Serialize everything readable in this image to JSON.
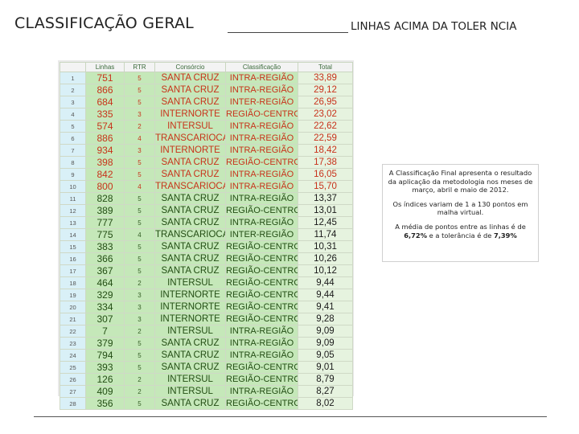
{
  "header": {
    "title_left": "CLASSIFICAÇÃO GERAL",
    "title_right": "LINHAS ACIMA DA TOLER NCIA"
  },
  "table": {
    "columns": [
      "",
      "Linhas",
      "RTR",
      "Consórcio",
      "Classificação",
      "Total"
    ],
    "rows": [
      {
        "n": "1",
        "linha": "751",
        "rtr": "5",
        "consorcio": "SANTA CRUZ",
        "classificacao": "INTRA-REGIÃO",
        "total": "33,89",
        "hi": true
      },
      {
        "n": "2",
        "linha": "866",
        "rtr": "5",
        "consorcio": "SANTA CRUZ",
        "classificacao": "INTRA-REGIÃO",
        "total": "29,12",
        "hi": true
      },
      {
        "n": "3",
        "linha": "684",
        "rtr": "5",
        "consorcio": "SANTA CRUZ",
        "classificacao": "INTER-REGIÃO",
        "total": "26,95",
        "hi": true
      },
      {
        "n": "4",
        "linha": "335",
        "rtr": "3",
        "consorcio": "INTERNORTE",
        "classificacao": "REGIÃO-CENTRO",
        "total": "23,02",
        "hi": true
      },
      {
        "n": "5",
        "linha": "574",
        "rtr": "2",
        "consorcio": "INTERSUL",
        "classificacao": "INTRA-REGIÃO",
        "total": "22,62",
        "hi": true
      },
      {
        "n": "6",
        "linha": "886",
        "rtr": "4",
        "consorcio": "TRANSCARIOCA",
        "classificacao": "INTRA-REGIÃO",
        "total": "22,59",
        "hi": true
      },
      {
        "n": "7",
        "linha": "934",
        "rtr": "3",
        "consorcio": "INTERNORTE",
        "classificacao": "INTRA-REGIÃO",
        "total": "18,42",
        "hi": true
      },
      {
        "n": "8",
        "linha": "398",
        "rtr": "5",
        "consorcio": "SANTA CRUZ",
        "classificacao": "REGIÃO-CENTRO",
        "total": "17,38",
        "hi": true
      },
      {
        "n": "9",
        "linha": "842",
        "rtr": "5",
        "consorcio": "SANTA CRUZ",
        "classificacao": "INTRA-REGIÃO",
        "total": "16,05",
        "hi": true
      },
      {
        "n": "10",
        "linha": "800",
        "rtr": "4",
        "consorcio": "TRANSCARIOCA",
        "classificacao": "INTRA-REGIÃO",
        "total": "15,70",
        "hi": true
      },
      {
        "n": "11",
        "linha": "828",
        "rtr": "5",
        "consorcio": "SANTA CRUZ",
        "classificacao": "INTRA-REGIÃO",
        "total": "13,37",
        "hi": false
      },
      {
        "n": "12",
        "linha": "389",
        "rtr": "5",
        "consorcio": "SANTA CRUZ",
        "classificacao": "REGIÃO-CENTRO",
        "total": "13,01",
        "hi": false
      },
      {
        "n": "13",
        "linha": "777",
        "rtr": "5",
        "consorcio": "SANTA CRUZ",
        "classificacao": "INTRA-REGIÃO",
        "total": "12,45",
        "hi": false
      },
      {
        "n": "14",
        "linha": "775",
        "rtr": "4",
        "consorcio": "TRANSCARIOCA",
        "classificacao": "INTER-REGIÃO",
        "total": "11,74",
        "hi": false
      },
      {
        "n": "15",
        "linha": "383",
        "rtr": "5",
        "consorcio": "SANTA CRUZ",
        "classificacao": "REGIÃO-CENTRO",
        "total": "10,31",
        "hi": false
      },
      {
        "n": "16",
        "linha": "366",
        "rtr": "5",
        "consorcio": "SANTA CRUZ",
        "classificacao": "REGIÃO-CENTRO",
        "total": "10,26",
        "hi": false
      },
      {
        "n": "17",
        "linha": "367",
        "rtr": "5",
        "consorcio": "SANTA CRUZ",
        "classificacao": "REGIÃO-CENTRO",
        "total": "10,12",
        "hi": false
      },
      {
        "n": "18",
        "linha": "464",
        "rtr": "2",
        "consorcio": "INTERSUL",
        "classificacao": "REGIÃO-CENTRO",
        "total": "9,44",
        "hi": false
      },
      {
        "n": "19",
        "linha": "329",
        "rtr": "3",
        "consorcio": "INTERNORTE",
        "classificacao": "REGIÃO-CENTRO",
        "total": "9,44",
        "hi": false
      },
      {
        "n": "20",
        "linha": "334",
        "rtr": "3",
        "consorcio": "INTERNORTE",
        "classificacao": "REGIÃO-CENTRO",
        "total": "9,41",
        "hi": false
      },
      {
        "n": "21",
        "linha": "307",
        "rtr": "3",
        "consorcio": "INTERNORTE",
        "classificacao": "REGIÃO-CENTRO",
        "total": "9,28",
        "hi": false
      },
      {
        "n": "22",
        "linha": "7",
        "rtr": "2",
        "consorcio": "INTERSUL",
        "classificacao": "INTRA-REGIÃO",
        "total": "9,09",
        "hi": false
      },
      {
        "n": "23",
        "linha": "379",
        "rtr": "5",
        "consorcio": "SANTA CRUZ",
        "classificacao": "INTRA-REGIÃO",
        "total": "9,09",
        "hi": false
      },
      {
        "n": "24",
        "linha": "794",
        "rtr": "5",
        "consorcio": "SANTA CRUZ",
        "classificacao": "INTRA-REGIÃO",
        "total": "9,05",
        "hi": false
      },
      {
        "n": "25",
        "linha": "393",
        "rtr": "5",
        "consorcio": "SANTA CRUZ",
        "classificacao": "REGIÃO-CENTRO",
        "total": "9,01",
        "hi": false
      },
      {
        "n": "26",
        "linha": "126",
        "rtr": "2",
        "consorcio": "INTERSUL",
        "classificacao": "REGIÃO-CENTRO",
        "total": "8,79",
        "hi": false
      },
      {
        "n": "27",
        "linha": "409",
        "rtr": "2",
        "consorcio": "INTERSUL",
        "classificacao": "INTRA-REGIÃO",
        "total": "8,27",
        "hi": false
      },
      {
        "n": "28",
        "linha": "356",
        "rtr": "5",
        "consorcio": "SANTA CRUZ",
        "classificacao": "REGIÃO-CENTRO",
        "total": "8,02",
        "hi": false
      }
    ]
  },
  "note": {
    "p1": "A Classificação Final apresenta o resultado da aplicação da metodologia nos meses de março, abril e maio de 2012.",
    "p2": "Os índices variam de 1 a 130 pontos em malha virtual.",
    "p3_pre": "A média de pontos entre as linhas é de ",
    "p3_avg": "6,72%",
    "p3_mid": " e a tolerância é de ",
    "p3_tol": "7,39%"
  },
  "colors": {
    "cell_green": "#c5e8b9",
    "highlight_red": "#c8321b",
    "text_green": "#234d14",
    "index_blue": "#d9f0f7"
  }
}
